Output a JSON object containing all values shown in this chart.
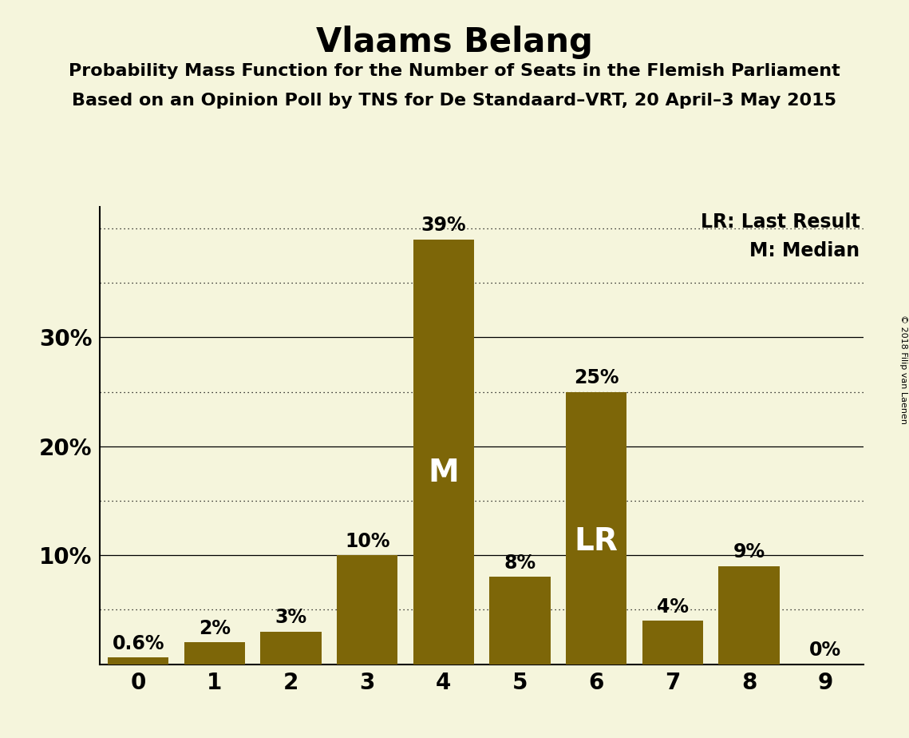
{
  "title": "Vlaams Belang",
  "subtitle1": "Probability Mass Function for the Number of Seats in the Flemish Parliament",
  "subtitle2": "Based on an Opinion Poll by TNS for De Standaard–VRT, 20 April–3 May 2015",
  "copyright": "© 2018 Filip van Laenen",
  "legend_lr": "LR: Last Result",
  "legend_m": "M: Median",
  "categories": [
    0,
    1,
    2,
    3,
    4,
    5,
    6,
    7,
    8,
    9
  ],
  "values": [
    0.6,
    2.0,
    3.0,
    10.0,
    39.0,
    8.0,
    25.0,
    4.0,
    9.0,
    0.0
  ],
  "labels": [
    "0.6%",
    "2%",
    "3%",
    "10%",
    "39%",
    "8%",
    "25%",
    "4%",
    "9%",
    "0%"
  ],
  "bar_color": "#7d6608",
  "background_color": "#f5f5dc",
  "median_bar": 4,
  "lr_bar": 6,
  "median_label": "M",
  "lr_label": "LR",
  "ylim": [
    0,
    42
  ],
  "yticks_solid": [
    10,
    20,
    30
  ],
  "yticks_dotted": [
    5,
    15,
    25,
    35,
    40
  ],
  "title_fontsize": 30,
  "subtitle_fontsize": 16,
  "label_fontsize": 17,
  "axis_fontsize": 20,
  "inside_label_fontsize": 28,
  "legend_fontsize": 17
}
